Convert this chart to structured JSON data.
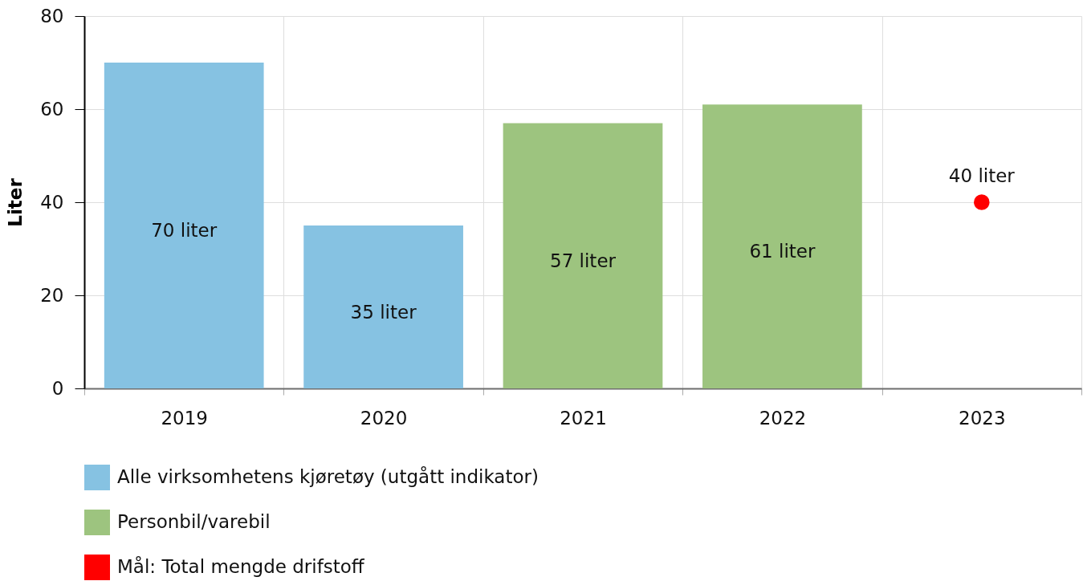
{
  "chart_data": {
    "type": "bar",
    "ylabel": "Liter",
    "categories": [
      "2019",
      "2020",
      "2021",
      "2022",
      "2023"
    ],
    "series": [
      {
        "name": "Alle virksomhetens kjøretøy (utgått indikator)",
        "color": "#86c2e2",
        "values": [
          70,
          35,
          null,
          null,
          null
        ],
        "value_labels": [
          "70 liter",
          "35 liter",
          null,
          null,
          null
        ]
      },
      {
        "name": "Personbil/varebil",
        "color": "#9dc47f",
        "values": [
          null,
          null,
          57,
          61,
          null
        ],
        "value_labels": [
          null,
          null,
          "57 liter",
          "61 liter",
          null
        ]
      },
      {
        "name": "Mål: Total mengde drifstoff",
        "type": "scatter",
        "color": "#ff0000",
        "values": [
          null,
          null,
          null,
          null,
          40
        ],
        "value_labels": [
          null,
          null,
          null,
          null,
          "40 liter"
        ]
      }
    ],
    "ylim": [
      0,
      80
    ],
    "yticks": [
      0,
      20,
      40,
      60,
      80
    ],
    "grid": true,
    "legend": "bottom",
    "marker": "circle"
  }
}
